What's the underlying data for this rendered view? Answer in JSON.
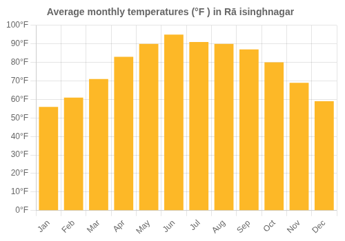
{
  "chart_data": {
    "type": "bar",
    "title": "Average monthly temperatures (°F ) in Rā isinghnagar",
    "categories": [
      "Jan",
      "Feb",
      "Mar",
      "Apr",
      "May",
      "Jun",
      "Jul",
      "Aug",
      "Sep",
      "Oct",
      "Nov",
      "Dec"
    ],
    "values": [
      56,
      61,
      71,
      83,
      90,
      95,
      91,
      90,
      87,
      80,
      69,
      59
    ],
    "color": "#FDB827",
    "ylim": [
      0,
      100
    ],
    "yticks": [
      {
        "value": 0,
        "label": "0°F"
      },
      {
        "value": 10,
        "label": "10°F"
      },
      {
        "value": 20,
        "label": "20°F"
      },
      {
        "value": 30,
        "label": "30°F"
      },
      {
        "value": 40,
        "label": "40°F"
      },
      {
        "value": 50,
        "label": "50°F"
      },
      {
        "value": 60,
        "label": "60°F"
      },
      {
        "value": 70,
        "label": "70°F"
      },
      {
        "value": 80,
        "label": "80°F"
      },
      {
        "value": 90,
        "label": "90°F"
      },
      {
        "value": 100,
        "label": "100°F"
      }
    ],
    "grid": true
  }
}
